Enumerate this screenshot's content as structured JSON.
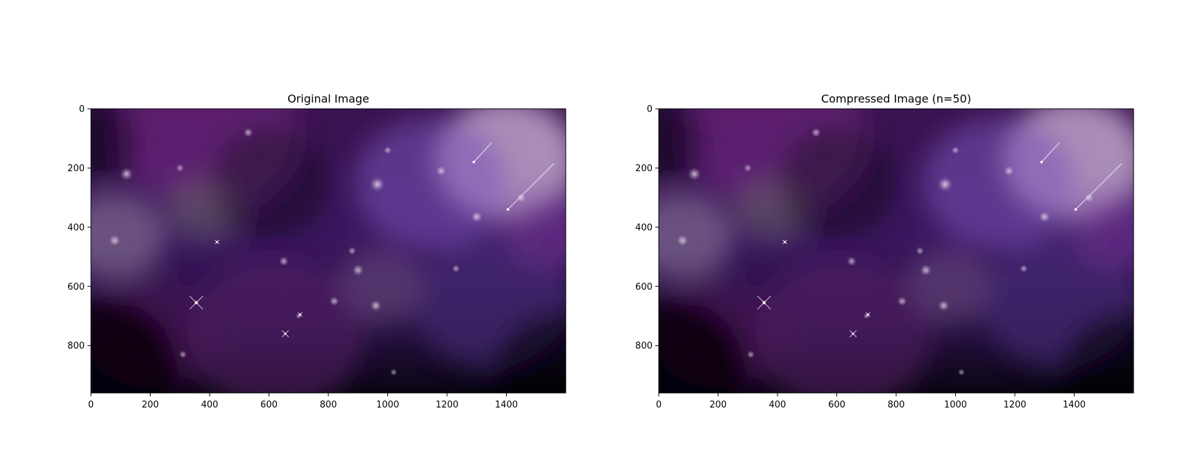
{
  "chart_data": [
    {
      "type": "image",
      "title": "Original Image",
      "xlim": [
        0,
        1600
      ],
      "ylim": [
        960,
        0
      ],
      "x_ticks": [
        0,
        200,
        400,
        600,
        800,
        1000,
        1200,
        1400
      ],
      "y_ticks": [
        0,
        200,
        400,
        600,
        800
      ],
      "features": [
        {
          "kind": "glow",
          "x": 1400,
          "y": 170,
          "r": 240,
          "color": "#cfb6d8",
          "opacity": 0.75
        },
        {
          "kind": "glow",
          "x": 1150,
          "y": 250,
          "r": 260,
          "color": "#7a52b8",
          "opacity": 0.55
        },
        {
          "kind": "glow",
          "x": 400,
          "y": 90,
          "r": 300,
          "color": "#7a2a86",
          "opacity": 0.55
        },
        {
          "kind": "glow",
          "x": 80,
          "y": 430,
          "r": 170,
          "color": "#8a7896",
          "opacity": 0.6
        },
        {
          "kind": "glow",
          "x": 380,
          "y": 340,
          "r": 130,
          "color": "#6f7468",
          "opacity": 0.45
        },
        {
          "kind": "glow",
          "x": 980,
          "y": 600,
          "r": 150,
          "color": "#6d4e84",
          "opacity": 0.55
        },
        {
          "kind": "glow",
          "x": 1350,
          "y": 650,
          "r": 260,
          "color": "#4a2f7a",
          "opacity": 0.6
        },
        {
          "kind": "glow",
          "x": 620,
          "y": 760,
          "r": 300,
          "color": "#5a1c6a",
          "opacity": 0.55
        },
        {
          "kind": "glow",
          "x": 200,
          "y": 760,
          "r": 220,
          "color": "#4b1455",
          "opacity": 0.55
        },
        {
          "kind": "glow",
          "x": 1550,
          "y": 400,
          "r": 160,
          "color": "#7a3a9c",
          "opacity": 0.5
        },
        {
          "kind": "dark",
          "x": 40,
          "y": 900,
          "r": 260,
          "opacity": 0.85
        },
        {
          "kind": "dark",
          "x": 1580,
          "y": 920,
          "r": 240,
          "opacity": 0.6
        },
        {
          "kind": "dark",
          "x": 600,
          "y": 250,
          "r": 200,
          "opacity": 0.35
        },
        {
          "kind": "dark",
          "x": 20,
          "y": 120,
          "r": 140,
          "opacity": 0.45
        },
        {
          "kind": "star",
          "x": 120,
          "y": 220,
          "r": 14
        },
        {
          "kind": "star",
          "x": 80,
          "y": 445,
          "r": 12
        },
        {
          "kind": "star",
          "x": 965,
          "y": 255,
          "r": 16
        },
        {
          "kind": "star",
          "x": 1300,
          "y": 365,
          "r": 12
        },
        {
          "kind": "star",
          "x": 650,
          "y": 515,
          "r": 10
        },
        {
          "kind": "star",
          "x": 900,
          "y": 545,
          "r": 12
        },
        {
          "kind": "star",
          "x": 960,
          "y": 665,
          "r": 12
        },
        {
          "kind": "star",
          "x": 820,
          "y": 650,
          "r": 10
        },
        {
          "kind": "star",
          "x": 1180,
          "y": 210,
          "r": 10
        },
        {
          "kind": "star",
          "x": 1000,
          "y": 140,
          "r": 8
        },
        {
          "kind": "star",
          "x": 530,
          "y": 80,
          "r": 10
        },
        {
          "kind": "star",
          "x": 300,
          "y": 200,
          "r": 8
        },
        {
          "kind": "star",
          "x": 1450,
          "y": 300,
          "r": 9
        },
        {
          "kind": "star",
          "x": 1230,
          "y": 540,
          "r": 8
        },
        {
          "kind": "star",
          "x": 1020,
          "y": 890,
          "r": 7
        },
        {
          "kind": "star",
          "x": 310,
          "y": 830,
          "r": 8
        },
        {
          "kind": "star",
          "x": 700,
          "y": 700,
          "r": 6
        },
        {
          "kind": "star",
          "x": 880,
          "y": 480,
          "r": 8
        },
        {
          "kind": "cross",
          "x": 355,
          "y": 655,
          "r": 16
        },
        {
          "kind": "cross",
          "x": 655,
          "y": 760,
          "r": 8
        },
        {
          "kind": "cross",
          "x": 425,
          "y": 450,
          "r": 5
        },
        {
          "kind": "cross",
          "x": 705,
          "y": 695,
          "r": 5
        },
        {
          "kind": "streak",
          "x1": 1290,
          "y1": 180,
          "x2": 1350,
          "y2": 115
        },
        {
          "kind": "streak",
          "x1": 1405,
          "y1": 340,
          "x2": 1560,
          "y2": 185
        }
      ]
    },
    {
      "type": "image",
      "title": "Compressed Image (n=50)",
      "xlim": [
        0,
        1600
      ],
      "ylim": [
        960,
        0
      ],
      "x_ticks": [
        0,
        200,
        400,
        600,
        800,
        1000,
        1200,
        1400
      ],
      "y_ticks": [
        0,
        200,
        400,
        600,
        800
      ],
      "same_as": 0
    }
  ]
}
